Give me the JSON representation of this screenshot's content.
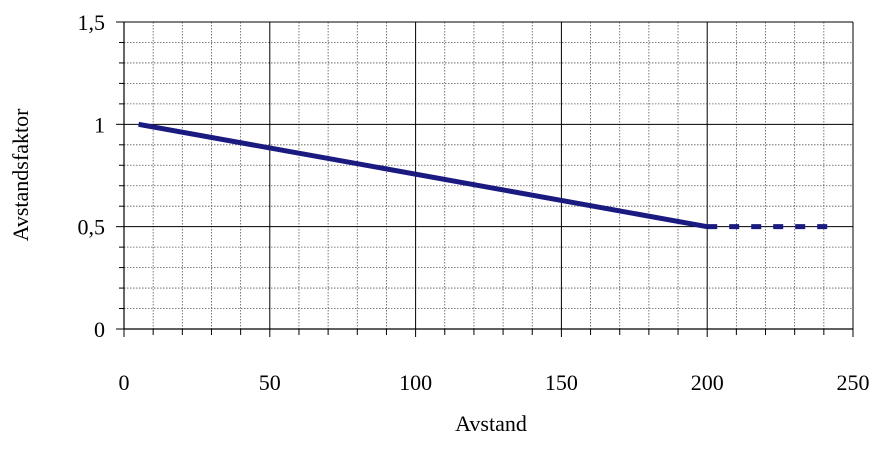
{
  "chart_data": {
    "type": "line",
    "title": "",
    "xlabel": "Avstand",
    "ylabel": "Avstandsfaktor",
    "xlim": [
      0,
      250
    ],
    "ylim": [
      0,
      1.5
    ],
    "x_ticks": [
      "0",
      "50",
      "100",
      "150",
      "200",
      "250"
    ],
    "y_ticks": [
      "0",
      "0,5",
      "1",
      "1,5"
    ],
    "x_tick_values": [
      0,
      50,
      100,
      150,
      200,
      250
    ],
    "y_tick_values": [
      0,
      0.5,
      1,
      1.5
    ],
    "x_minor_step": 10,
    "y_minor_step": 0.1,
    "grid": true,
    "series": [
      {
        "line_style": "solid",
        "color": "#1a1a80",
        "x": [
          5,
          200
        ],
        "y": [
          1.0,
          0.5
        ]
      },
      {
        "line_style": "dashed",
        "color": "#1a1a80",
        "x": [
          200,
          245
        ],
        "y": [
          0.5,
          0.5
        ]
      }
    ]
  }
}
